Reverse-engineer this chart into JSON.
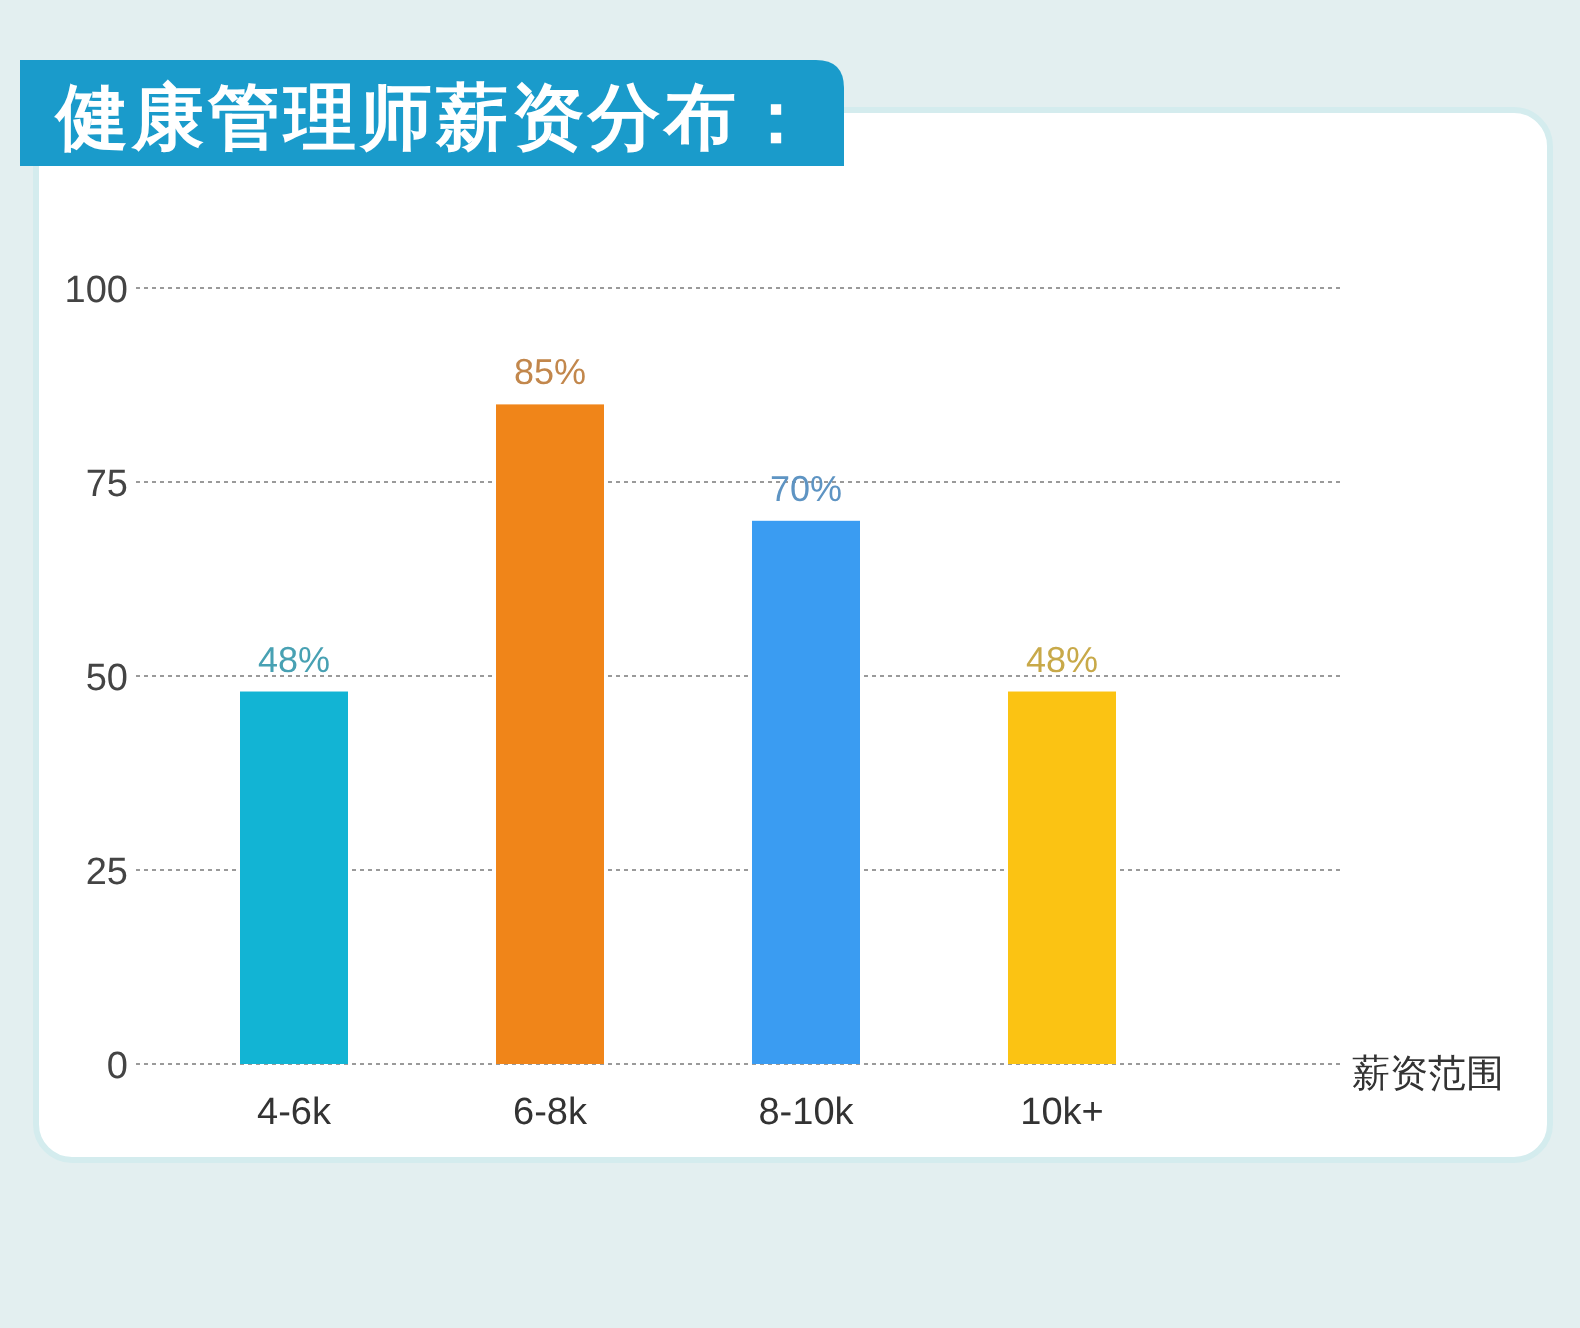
{
  "chart_data": {
    "type": "bar",
    "title": "健康管理师薪资分布：",
    "xlabel": "薪资范围",
    "categories": [
      "4-6k",
      "6-8k",
      "8-10k",
      "10k+"
    ],
    "values": [
      48,
      85,
      70,
      48
    ],
    "colors": [
      "#12b4d4",
      "#f08519",
      "#3a9cf2",
      "#fbc313"
    ],
    "value_labels": [
      "48%",
      "85%",
      "70%",
      "48%"
    ],
    "ylim": [
      0,
      100
    ],
    "yticks": [
      0,
      25,
      50,
      75,
      100
    ],
    "grid": "y"
  }
}
